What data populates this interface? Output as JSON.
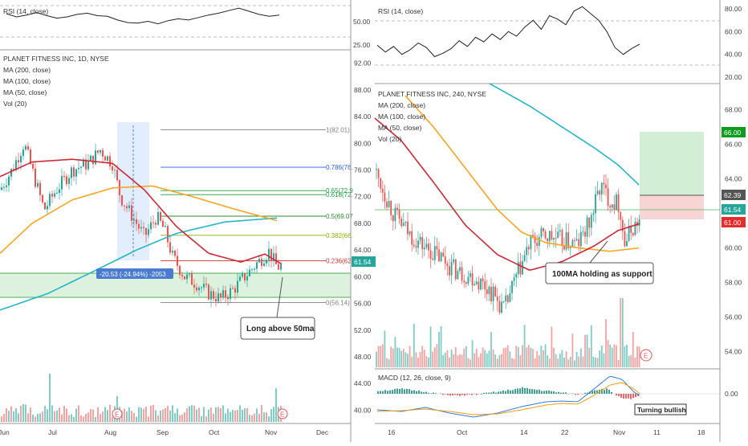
{
  "left": {
    "rsi": {
      "legend": "RSI (14, close)",
      "ticks": [
        "50.00",
        "25.00"
      ],
      "values": [
        62,
        57,
        60,
        64,
        59,
        55,
        57,
        61,
        63,
        59,
        58,
        52,
        48,
        47,
        50,
        46,
        51,
        54,
        52,
        56,
        60,
        63,
        67,
        71,
        66,
        61,
        58,
        60
      ]
    },
    "main": {
      "title": "PLANET FITNESS INC, 1D, NYSE",
      "legend": [
        "MA (200, close)",
        "MA (100, close)",
        "MA (50, close)",
        "Vol (20)"
      ],
      "price_ticks": [
        "92.00",
        "88.00",
        "84.00",
        "80.00",
        "76.00",
        "72.00",
        "68.00",
        "64.00",
        "60.00",
        "56.00",
        "52.00",
        "48.00",
        "44.00",
        "40.00"
      ],
      "current_price": "61.54",
      "fib_levels": [
        {
          "label": "1(82.01)",
          "color": "#808080"
        },
        {
          "label": "0.786(76.",
          "color": "#2962ff"
        },
        {
          "label": "0.65(72.9",
          "color": "#22a040"
        },
        {
          "label": "0.618(72.",
          "color": "#22a040"
        },
        {
          "label": "0.5(69.07",
          "color": "#2e8b2e"
        },
        {
          "label": "0.382(66.",
          "color": "#8cb000"
        },
        {
          "label": "0.236(62.",
          "color": "#cc3333"
        },
        {
          "label": "0(56.14)",
          "color": "#808080"
        }
      ],
      "measure_label": "-20.53 (-24.94%) -2053",
      "annotation": "Long above 50ma",
      "x_labels": [
        "Jun",
        "Jul",
        "Aug",
        "Sep",
        "Oct",
        "Nov",
        "Dec"
      ],
      "event_marker": "E"
    }
  },
  "right": {
    "rsi": {
      "legend": "RSI (14, close)",
      "ticks": [
        "80.00",
        "60.00",
        "40.00",
        "20.00"
      ],
      "values": [
        48,
        42,
        47,
        40,
        44,
        50,
        46,
        38,
        41,
        45,
        52,
        47,
        55,
        51,
        58,
        53,
        60,
        56,
        64,
        70,
        62,
        74,
        71,
        66,
        78,
        82,
        76,
        70,
        60,
        46,
        40,
        45,
        49
      ]
    },
    "main": {
      "title": "PLANET FITNESS INC, 240, NYSE",
      "legend": [
        "MA (200, close)",
        "MA (100, close)",
        "MA (50, close)",
        "Vol (20)"
      ],
      "price_ticks": [
        "68.00",
        "66.00",
        "64.00",
        "62.00",
        "60.00",
        "58.00",
        "56.00",
        "54.00"
      ],
      "target_price": "66.00",
      "entry_price": "62.39",
      "current_price": "61.54",
      "stop_price": "61.00",
      "annotation": "100MA holding as support",
      "event_marker": "E"
    },
    "macd": {
      "legend": "MACD (12, 26, close, 9)",
      "tick": "0.00",
      "annotation": "Turning bullish"
    },
    "x_labels": [
      "16",
      "Oct",
      "14",
      "22",
      "Nov",
      "11",
      "18"
    ]
  },
  "colors": {
    "ma200": "#26b5c9",
    "ma100": "#f5a623",
    "ma50": "#cc2a36",
    "up": "#26a69a",
    "down": "#ef5350",
    "vol_up": "#7fcdc4",
    "vol_down": "#f4a3a3",
    "price_badge": "#26a69a",
    "target_badge": "#0d9c1e",
    "stop_badge": "#e82b2b",
    "entry_badge": "#555555"
  },
  "chart_data": [
    {
      "type": "line",
      "title": "PLANET FITNESS INC, 1D, NYSE",
      "x": [
        "Jun",
        "Jul",
        "Aug",
        "Sep",
        "Oct",
        "Nov"
      ],
      "series": [
        {
          "name": "MA (200, close)",
          "values": [
            56,
            59,
            63,
            67,
            68.5,
            69
          ]
        },
        {
          "name": "MA (100, close)",
          "values": [
            64,
            70,
            74,
            74,
            71,
            68
          ]
        },
        {
          "name": "MA (50, close)",
          "values": [
            72,
            77,
            79,
            74,
            65,
            62
          ]
        }
      ],
      "ylim": [
        38,
        94
      ],
      "current_price": 61.54
    },
    {
      "type": "line",
      "title": "PLANET FITNESS INC, 240, NYSE",
      "x": [
        "16",
        "Oct",
        "14",
        "22",
        "Nov",
        "11"
      ],
      "series": [
        {
          "name": "MA (200, close)",
          "values": [
            70,
            68.4,
            67,
            65.8,
            64.6,
            63.6
          ]
        },
        {
          "name": "MA (100, close)",
          "values": [
            68,
            64.4,
            60.8,
            60.2,
            59.9,
            60
          ]
        },
        {
          "name": "MA (50, close)",
          "values": [
            67,
            62,
            58.6,
            59.2,
            60.6,
            60.9
          ]
        }
      ],
      "ylim": [
        53,
        69.5
      ],
      "target": 66.0,
      "entry": 62.39,
      "stop": 61.0,
      "current_price": 61.54
    }
  ]
}
